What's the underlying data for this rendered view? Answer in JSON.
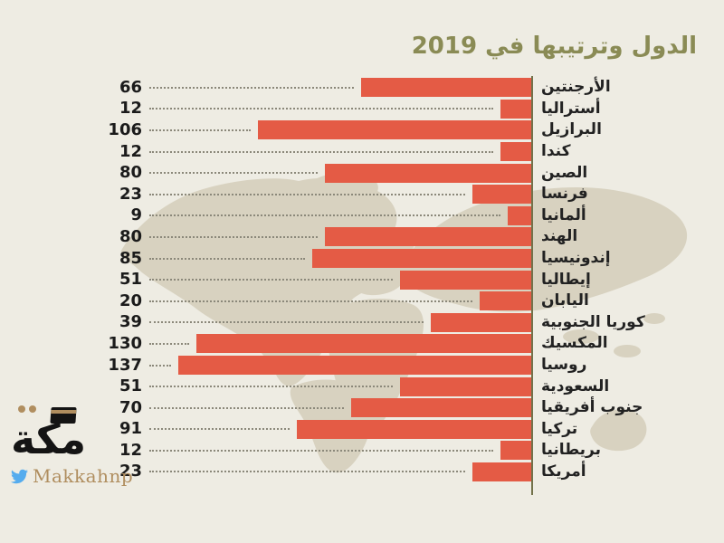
{
  "title": {
    "text": "الدول وترتيبها في 2019"
  },
  "colors": {
    "background": "#eeece3",
    "map": "#d8d2c0",
    "bar": "#e45b45",
    "axis": "#72724a",
    "title": "#8a8b55",
    "value_text": "#1b1b1b",
    "country_text": "#222222",
    "leader": "#8b887a",
    "logo_black": "#141414",
    "logo_tan": "#b08e5f",
    "twitter_blue": "#55acee"
  },
  "chart_data": {
    "type": "bar",
    "orientation": "horizontal",
    "title": "الدول وترتيبها في 2019",
    "categories": [
      "الأرجنتين",
      "أستراليا",
      "البرازيل",
      "كندا",
      "الصين",
      "فرنسا",
      "ألمانيا",
      "الهند",
      "إندونيسيا",
      "إيطاليا",
      "اليابان",
      "كوريا الجنوبية",
      "المكسيك",
      "روسيا",
      "السعودية",
      "جنوب أفريقيا",
      "تركيا",
      "بريطانيا",
      "أمريكا"
    ],
    "values": [
      66,
      12,
      106,
      12,
      80,
      23,
      9,
      80,
      85,
      51,
      20,
      39,
      130,
      137,
      51,
      70,
      91,
      12,
      23
    ],
    "value_axis_max": 137,
    "grid": false,
    "value_labels_position": "left",
    "category_labels_position": "right",
    "legend": "none"
  },
  "logo": {
    "arabic": "مكة",
    "handle": "Makkahnp"
  }
}
